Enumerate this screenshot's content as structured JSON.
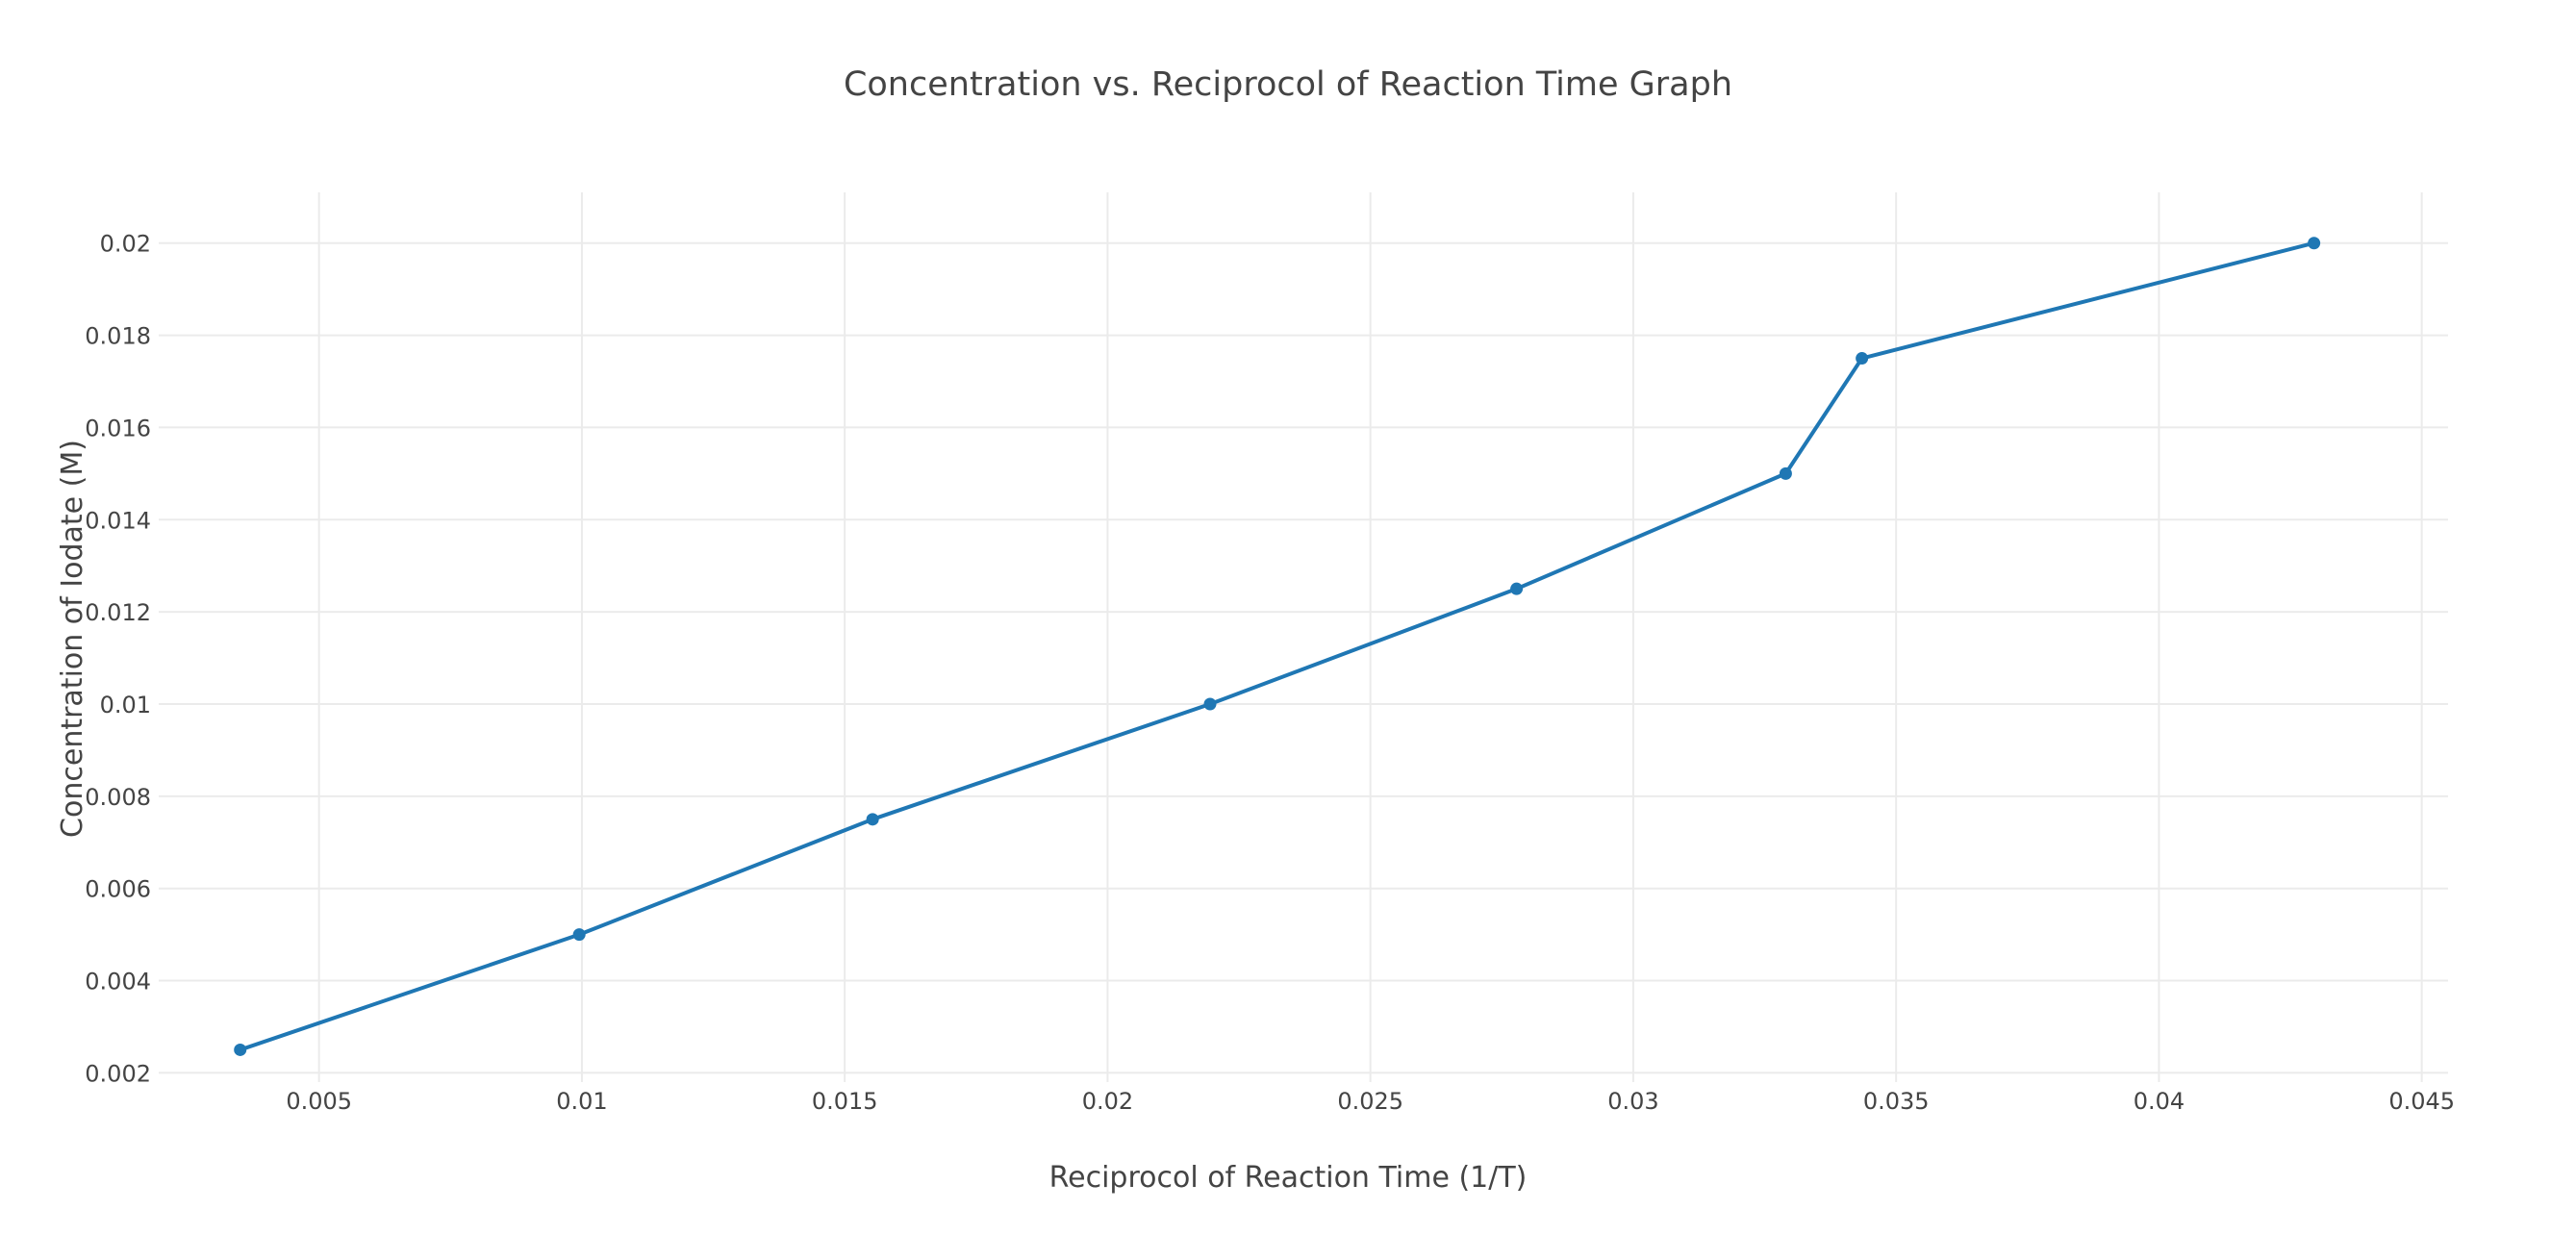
{
  "chart_data": {
    "type": "line",
    "title": "Concentration vs. Reciprocol of Reaction Time Graph",
    "xlabel": "Reciprocol of Reaction Time (1/T)",
    "ylabel": "Concentration of Iodate (M)",
    "xlim": [
      0.00195,
      0.0455
    ],
    "ylim": [
      0.0018,
      0.0211
    ],
    "xticks": [
      0.005,
      0.01,
      0.015,
      0.02,
      0.025,
      0.03,
      0.035,
      0.04,
      0.045
    ],
    "xtick_labels": [
      "0.005",
      "0.01",
      "0.015",
      "0.02",
      "0.025",
      "0.03",
      "0.035",
      "0.04",
      "0.045"
    ],
    "yticks": [
      0.002,
      0.004,
      0.006,
      0.008,
      0.01,
      0.012,
      0.014,
      0.016,
      0.018,
      0.02
    ],
    "ytick_labels": [
      "0.002",
      "0.004",
      "0.006",
      "0.008",
      "0.01",
      "0.012",
      "0.014",
      "0.016",
      "0.018",
      "0.02"
    ],
    "grid": true,
    "series": [
      {
        "color": "#1f77b4",
        "mode": "lines+markers",
        "x": [
          0.0035,
          0.00995,
          0.01553,
          0.02195,
          0.02778,
          0.0329,
          0.03435,
          0.04295
        ],
        "y": [
          0.0025,
          0.005,
          0.0075,
          0.01,
          0.0125,
          0.015,
          0.0175,
          0.02
        ]
      }
    ]
  }
}
